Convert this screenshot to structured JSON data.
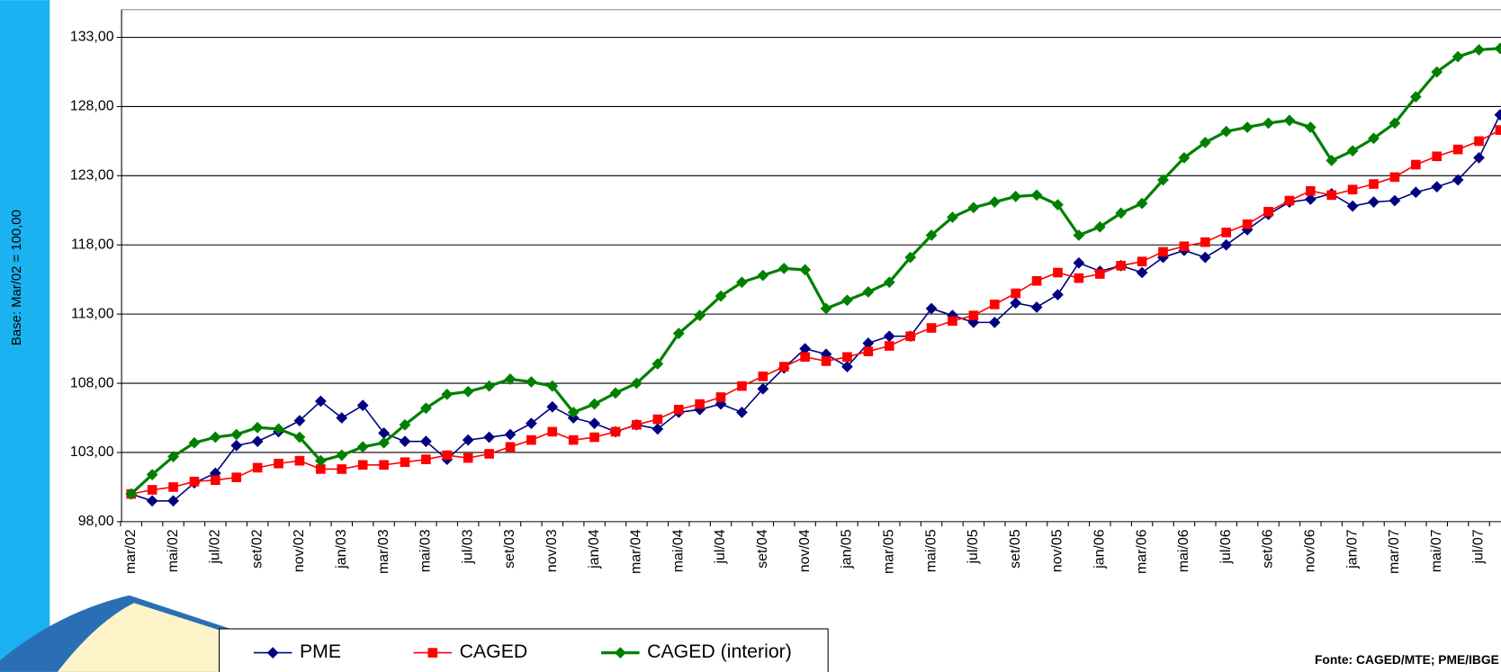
{
  "chart_data": {
    "type": "line",
    "y_label": "Base: Mar/02 = 100,00",
    "source": "Fonte: CAGED/MTE; PME/IBGE",
    "categories": [
      "mar/02",
      null,
      "mai/02",
      null,
      "jul/02",
      null,
      "set/02",
      null,
      "nov/02",
      null,
      "jan/03",
      null,
      "mar/03",
      null,
      "mai/03",
      null,
      "jul/03",
      null,
      "set/03",
      null,
      "nov/03",
      null,
      "jan/04",
      null,
      "mar/04",
      null,
      "mai/04",
      null,
      "jul/04",
      null,
      "set/04",
      null,
      "nov/04",
      null,
      "jan/05",
      null,
      "mar/05",
      null,
      "mai/05",
      null,
      "jul/05",
      null,
      "set/05",
      null,
      "nov/05",
      null,
      "jan/06",
      null,
      "mar/06",
      null,
      "mai/06",
      null,
      "jul/06",
      null,
      "set/06",
      null,
      "nov/06",
      null,
      "jan/07",
      null,
      "mar/07",
      null,
      "mai/07",
      null,
      "jul/07",
      null
    ],
    "ylim": [
      98,
      135
    ],
    "yticks": [
      {
        "value": 98,
        "label": "98,00"
      },
      {
        "value": 103,
        "label": "103,00"
      },
      {
        "value": 108,
        "label": "108,00"
      },
      {
        "value": 113,
        "label": "113,00"
      },
      {
        "value": 118,
        "label": "118,00"
      },
      {
        "value": 123,
        "label": "123,00"
      },
      {
        "value": 128,
        "label": "128,00"
      },
      {
        "value": 133,
        "label": "133,00"
      }
    ],
    "grid": true,
    "legend": "bottom",
    "series": [
      {
        "name": "PME",
        "color": "#000080",
        "marker": "diamond",
        "values": [
          100.0,
          99.5,
          99.5,
          100.8,
          101.5,
          103.5,
          103.8,
          104.5,
          105.3,
          106.7,
          105.5,
          106.4,
          104.4,
          103.8,
          103.8,
          102.5,
          103.9,
          104.1,
          104.3,
          105.1,
          106.3,
          105.5,
          105.1,
          104.5,
          105.0,
          104.7,
          105.9,
          106.1,
          106.5,
          105.9,
          107.6,
          109.1,
          110.5,
          110.1,
          109.2,
          110.9,
          111.4,
          111.4,
          113.4,
          112.9,
          112.4,
          112.4,
          113.8,
          113.5,
          114.4,
          116.7,
          116.1,
          116.5,
          116.0,
          117.1,
          117.6,
          117.1,
          118.0,
          119.1,
          120.2,
          121.1,
          121.3,
          121.7,
          120.8,
          121.1,
          121.2,
          121.8,
          122.2,
          122.7,
          124.3,
          127.4
        ]
      },
      {
        "name": "CAGED",
        "color": "#ff0000",
        "marker": "square",
        "values": [
          100.0,
          100.3,
          100.5,
          100.9,
          101.0,
          101.2,
          101.9,
          102.2,
          102.4,
          101.8,
          101.8,
          102.1,
          102.1,
          102.3,
          102.5,
          102.8,
          102.6,
          102.9,
          103.4,
          103.9,
          104.5,
          103.9,
          104.1,
          104.5,
          105.0,
          105.4,
          106.1,
          106.5,
          107.0,
          107.8,
          108.5,
          109.2,
          109.9,
          109.6,
          109.9,
          110.3,
          110.7,
          111.4,
          112.0,
          112.5,
          112.9,
          113.7,
          114.5,
          115.4,
          116.0,
          115.6,
          115.9,
          116.5,
          116.8,
          117.5,
          117.9,
          118.2,
          118.9,
          119.5,
          120.4,
          121.2,
          121.9,
          121.6,
          122.0,
          122.4,
          122.9,
          123.8,
          124.4,
          124.9,
          125.5,
          126.3
        ]
      },
      {
        "name": "CAGED (interior)",
        "color": "#008000",
        "marker": "diamond",
        "width": 3,
        "values": [
          100.0,
          101.4,
          102.7,
          103.7,
          104.1,
          104.3,
          104.8,
          104.7,
          104.1,
          102.4,
          102.8,
          103.4,
          103.7,
          105.0,
          106.2,
          107.2,
          107.4,
          107.8,
          108.3,
          108.1,
          107.8,
          105.9,
          106.5,
          107.3,
          108.0,
          109.4,
          111.6,
          112.9,
          114.3,
          115.3,
          115.8,
          116.3,
          116.2,
          113.4,
          114.0,
          114.6,
          115.3,
          117.1,
          118.7,
          120.0,
          120.7,
          121.1,
          121.5,
          121.6,
          120.9,
          118.7,
          119.3,
          120.3,
          121.0,
          122.7,
          124.3,
          125.4,
          126.2,
          126.5,
          126.8,
          127.0,
          126.5,
          124.1,
          124.8,
          125.7,
          126.8,
          128.7,
          130.5,
          131.6,
          132.1,
          132.2
        ]
      }
    ]
  }
}
